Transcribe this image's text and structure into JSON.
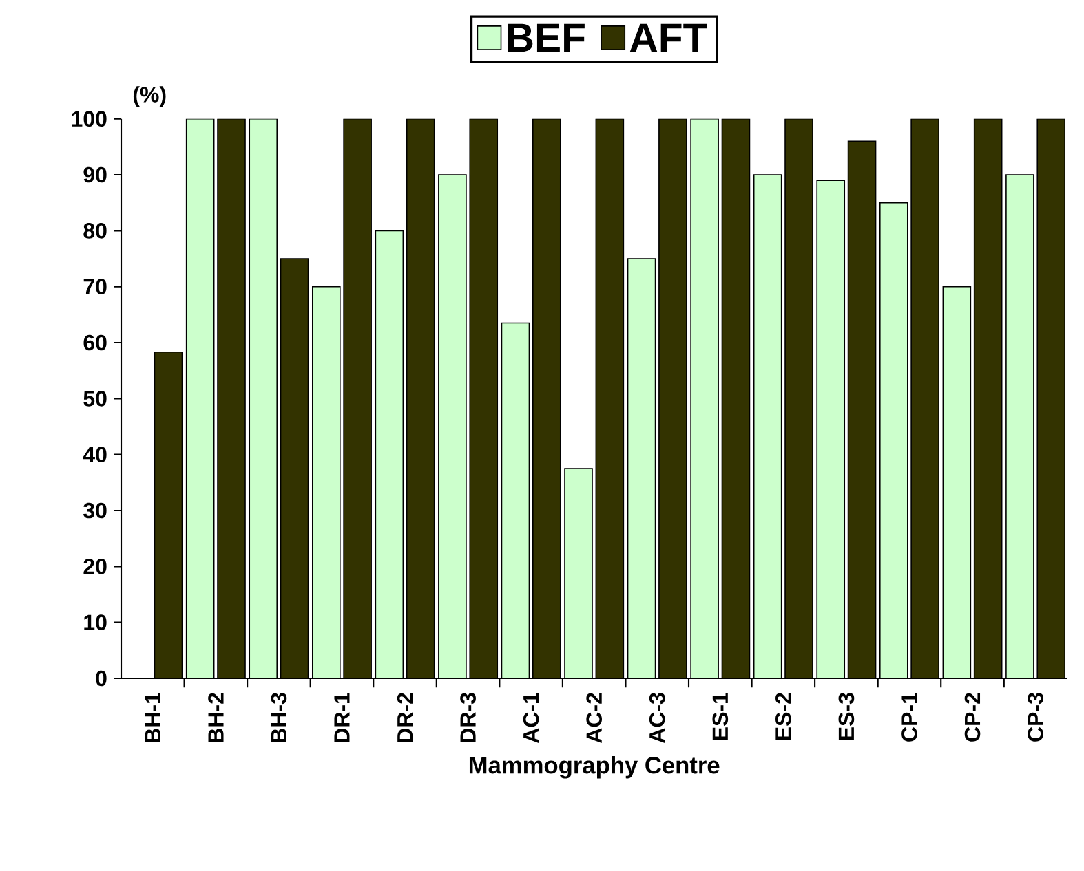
{
  "chart_data": {
    "type": "bar",
    "xlabel": "Mammography Centre",
    "ylabel": "(%)",
    "categories": [
      "BH-1",
      "BH-2",
      "BH-3",
      "DR-1",
      "DR-2",
      "DR-3",
      "AC-1",
      "AC-2",
      "AC-3",
      "ES-1",
      "ES-2",
      "ES-3",
      "CP-1",
      "CP-2",
      "CP-3"
    ],
    "series": [
      {
        "name": "BEF",
        "color": "#ccffcc",
        "values": [
          null,
          100,
          100,
          70,
          80,
          90,
          63.5,
          37.5,
          75,
          100,
          90,
          89,
          85,
          70,
          90
        ]
      },
      {
        "name": "AFT",
        "color": "#333300",
        "values": [
          58.3,
          100,
          75,
          100,
          100,
          100,
          100,
          100,
          100,
          100,
          100,
          96,
          100,
          100,
          100
        ]
      }
    ],
    "ylim": [
      0,
      100
    ],
    "yticks": [
      0,
      10,
      20,
      30,
      40,
      50,
      60,
      70,
      80,
      90,
      100
    ],
    "grid": false,
    "legend": "top"
  }
}
